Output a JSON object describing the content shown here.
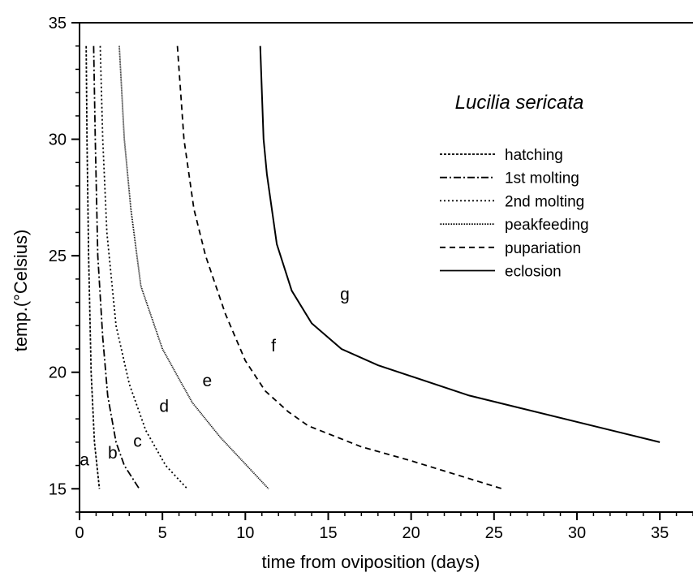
{
  "chart_data": {
    "type": "line",
    "title": "Lucilia sericata",
    "xlabel": "time from oviposition (days)",
    "ylabel": "temp.(°Celsius)",
    "xlim": [
      0,
      37
    ],
    "ylim": [
      14,
      35
    ],
    "xticks": [
      0,
      5,
      10,
      15,
      20,
      25,
      30,
      35
    ],
    "yticks": [
      15,
      20,
      25,
      30,
      35
    ],
    "grid": false,
    "legend_position": "top-right",
    "series": [
      {
        "name": "hatching",
        "label": "a",
        "dash": "3,2",
        "points": [
          [
            0.4,
            34
          ],
          [
            0.45,
            30
          ],
          [
            0.55,
            25
          ],
          [
            0.7,
            20
          ],
          [
            0.9,
            17
          ],
          [
            1.2,
            15
          ]
        ]
      },
      {
        "name": "1st molting",
        "label": "",
        "dash": "9,3,2,3",
        "points": [
          [
            0.85,
            34
          ],
          [
            0.95,
            30
          ],
          [
            1.1,
            25
          ],
          [
            1.4,
            21.5
          ],
          [
            1.7,
            19
          ],
          [
            2.2,
            17
          ],
          [
            2.7,
            16
          ],
          [
            3.6,
            15
          ]
        ]
      },
      {
        "name": "2nd molting",
        "label": "b",
        "dash": "2,3",
        "points": [
          [
            1.25,
            34
          ],
          [
            1.4,
            30
          ],
          [
            1.65,
            26
          ],
          [
            2.2,
            22
          ],
          [
            3.0,
            19.5
          ],
          [
            4.0,
            17.5
          ],
          [
            5.2,
            16
          ],
          [
            6.5,
            15
          ]
        ]
      },
      {
        "name": "peakfeeding",
        "label": "c",
        "dash": "1,1",
        "points": [
          [
            2.4,
            34
          ],
          [
            2.7,
            30
          ],
          [
            3.1,
            27
          ],
          [
            3.7,
            23.7
          ],
          [
            5.0,
            21
          ],
          [
            6.8,
            18.7
          ],
          [
            8.5,
            17.2
          ],
          [
            11.4,
            15
          ]
        ]
      },
      {
        "name": "pupariation",
        "label": "d",
        "dash": "7,5",
        "points": [
          [
            5.9,
            34
          ],
          [
            6.3,
            30
          ],
          [
            6.9,
            27
          ],
          [
            7.6,
            25
          ],
          [
            8.8,
            22.5
          ],
          [
            10.0,
            20.5
          ],
          [
            11.2,
            19.2
          ],
          [
            12.6,
            18.3
          ],
          [
            13.8,
            17.7
          ],
          [
            17.0,
            16.8
          ],
          [
            20.0,
            16.2
          ],
          [
            25.5,
            15
          ]
        ]
      },
      {
        "name": "eclosion",
        "label": "e",
        "dash": "",
        "points": [
          [
            10.9,
            34
          ],
          [
            11.1,
            30
          ],
          [
            11.3,
            28.5
          ],
          [
            11.9,
            25.5
          ],
          [
            12.8,
            23.5
          ],
          [
            14.0,
            22.1
          ],
          [
            15.8,
            21.0
          ],
          [
            18.0,
            20.3
          ],
          [
            23.5,
            19.0
          ],
          [
            35.0,
            17.0
          ]
        ]
      }
    ],
    "annotations": [
      {
        "text": "a",
        "x": 0.3,
        "y": 16.0
      },
      {
        "text": "b",
        "x": 2.0,
        "y": 16.3
      },
      {
        "text": "c",
        "x": 3.5,
        "y": 16.8
      },
      {
        "text": "d",
        "x": 5.1,
        "y": 18.3
      },
      {
        "text": "e",
        "x": 7.7,
        "y": 19.4
      },
      {
        "text": "f",
        "x": 11.7,
        "y": 20.9
      },
      {
        "text": "g",
        "x": 16.0,
        "y": 23.1
      }
    ]
  }
}
